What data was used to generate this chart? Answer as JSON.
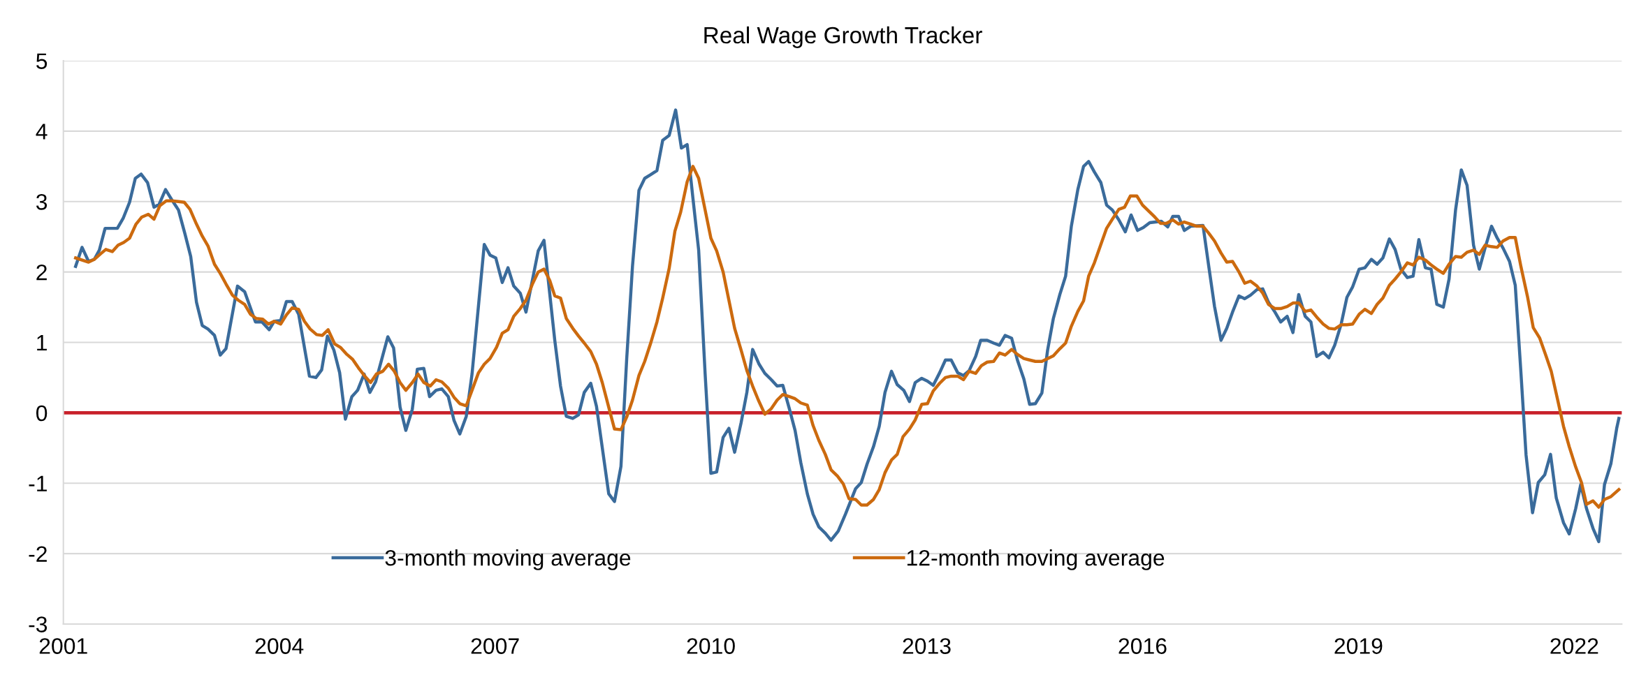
{
  "chart_data": {
    "type": "line",
    "title": "Real Wage Growth Tracker",
    "xlim": [
      2001,
      2022.66
    ],
    "xticks": [
      2001,
      2004,
      2007,
      2010,
      2013,
      2016,
      2019,
      2022
    ],
    "ylim": [
      -3,
      5
    ],
    "yticks": [
      -3,
      -2,
      -1,
      0,
      1,
      2,
      3,
      4,
      5
    ],
    "grid": "y",
    "legend": "bottom",
    "line_style": "solid",
    "marker": "none",
    "ref_lines": [
      {
        "axis": "y",
        "value": 0,
        "label": null,
        "color": "#c8202a",
        "line_style": "solid"
      }
    ],
    "series": [
      {
        "name": "3-month moving average",
        "color": "#3a6b9b",
        "x": [
          2001.17,
          2001.26,
          2001.35,
          2001.43,
          2001.5,
          2001.58,
          2001.75,
          2001.83,
          2001.92,
          2002.0,
          2002.08,
          2002.17,
          2002.26,
          2002.33,
          2002.42,
          2002.51,
          2002.6,
          2002.69,
          2002.77,
          2002.85,
          2002.93,
          2003.01,
          2003.1,
          2003.18,
          2003.26,
          2003.42,
          2003.52,
          2003.67,
          2003.76,
          2003.86,
          2003.93,
          2004.02,
          2004.1,
          2004.18,
          2004.27,
          2004.42,
          2004.51,
          2004.59,
          2004.67,
          2004.76,
          2004.84,
          2004.92,
          2005.01,
          2005.09,
          2005.18,
          2005.26,
          2005.34,
          2005.51,
          2005.59,
          2005.68,
          2005.76,
          2005.85,
          2005.92,
          2006.01,
          2006.09,
          2006.18,
          2006.26,
          2006.35,
          2006.43,
          2006.51,
          2006.6,
          2006.68,
          2006.85,
          2006.93,
          2007.01,
          2007.1,
          2007.18,
          2007.26,
          2007.35,
          2007.43,
          2007.6,
          2007.68,
          2007.83,
          2007.91,
          2007.99,
          2008.08,
          2008.16,
          2008.24,
          2008.33,
          2008.41,
          2008.58,
          2008.66,
          2008.75,
          2008.83,
          2008.91,
          2009.0,
          2009.08,
          2009.16,
          2009.25,
          2009.33,
          2009.42,
          2009.51,
          2009.59,
          2009.67,
          2009.75,
          2009.83,
          2009.92,
          2010.0,
          2010.08,
          2010.17,
          2010.25,
          2010.33,
          2010.42,
          2010.5,
          2010.58,
          2010.67,
          2010.75,
          2010.84,
          2010.92,
          2011.0,
          2011.09,
          2011.17,
          2011.25,
          2011.34,
          2011.42,
          2011.5,
          2011.59,
          2011.67,
          2011.77,
          2011.87,
          2012.01,
          2012.09,
          2012.17,
          2012.26,
          2012.34,
          2012.42,
          2012.51,
          2012.59,
          2012.68,
          2012.76,
          2012.84,
          2012.93,
          2013.01,
          2013.09,
          2013.18,
          2013.26,
          2013.34,
          2013.43,
          2013.51,
          2013.59,
          2013.68,
          2013.75,
          2013.84,
          2013.93,
          2014.01,
          2014.09,
          2014.18,
          2014.26,
          2014.35,
          2014.43,
          2014.51,
          2014.6,
          2014.68,
          2014.76,
          2014.85,
          2014.93,
          2015.01,
          2015.1,
          2015.18,
          2015.25,
          2015.33,
          2015.42,
          2015.5,
          2015.58,
          2015.67,
          2015.76,
          2015.84,
          2015.93,
          2016.01,
          2016.1,
          2016.26,
          2016.35,
          2016.42,
          2016.5,
          2016.58,
          2016.67,
          2016.84,
          2016.92,
          2017.0,
          2017.09,
          2017.17,
          2017.25,
          2017.34,
          2017.42,
          2017.5,
          2017.59,
          2017.67,
          2017.75,
          2017.84,
          2017.92,
          2018.01,
          2018.09,
          2018.17,
          2018.26,
          2018.34,
          2018.42,
          2018.51,
          2018.59,
          2018.67,
          2018.76,
          2018.84,
          2018.92,
          2019.01,
          2019.09,
          2019.18,
          2019.26,
          2019.34,
          2019.43,
          2019.51,
          2019.59,
          2019.68,
          2019.76,
          2019.84,
          2019.93,
          2020.01,
          2020.09,
          2020.18,
          2020.26,
          2020.35,
          2020.43,
          2020.51,
          2020.6,
          2020.68,
          2020.76,
          2020.85,
          2020.93,
          2021.01,
          2021.1,
          2021.18,
          2021.26,
          2021.33,
          2021.42,
          2021.5,
          2021.59,
          2021.67,
          2021.75,
          2021.85,
          2021.93,
          2022.02,
          2022.09,
          2022.17,
          2022.26,
          2022.34,
          2022.42,
          2022.51,
          2022.59,
          2022.62
        ],
        "values": [
          2.08,
          2.35,
          2.15,
          2.18,
          2.31,
          2.62,
          2.62,
          2.76,
          2.99,
          3.33,
          3.39,
          3.27,
          2.92,
          2.96,
          3.17,
          3.02,
          2.88,
          2.54,
          2.22,
          1.57,
          1.24,
          1.19,
          1.1,
          0.82,
          0.91,
          1.8,
          1.72,
          1.29,
          1.29,
          1.18,
          1.3,
          1.31,
          1.58,
          1.58,
          1.4,
          0.52,
          0.5,
          0.61,
          1.09,
          0.89,
          0.57,
          -0.09,
          0.23,
          0.32,
          0.55,
          0.29,
          0.44,
          1.08,
          0.92,
          0.08,
          -0.25,
          0.05,
          0.62,
          0.63,
          0.23,
          0.32,
          0.34,
          0.23,
          -0.11,
          -0.3,
          -0.05,
          0.55,
          2.39,
          2.24,
          2.2,
          1.85,
          2.06,
          1.8,
          1.7,
          1.43,
          2.3,
          2.45,
          1.03,
          0.38,
          -0.05,
          -0.08,
          -0.03,
          0.29,
          0.42,
          0.09,
          -1.15,
          -1.26,
          -0.76,
          0.77,
          2.08,
          3.16,
          3.33,
          3.38,
          3.44,
          3.87,
          3.94,
          4.3,
          3.76,
          3.81,
          3.05,
          2.31,
          0.55,
          -0.86,
          -0.84,
          -0.35,
          -0.22,
          -0.56,
          -0.14,
          0.29,
          0.9,
          0.69,
          0.56,
          0.47,
          0.38,
          0.39,
          0.06,
          -0.25,
          -0.71,
          -1.15,
          -1.44,
          -1.62,
          -1.71,
          -1.81,
          -1.68,
          -1.44,
          -1.08,
          -0.99,
          -0.73,
          -0.48,
          -0.19,
          0.29,
          0.59,
          0.4,
          0.32,
          0.16,
          0.43,
          0.49,
          0.45,
          0.39,
          0.57,
          0.75,
          0.75,
          0.57,
          0.53,
          0.6,
          0.8,
          1.03,
          1.03,
          0.99,
          0.96,
          1.1,
          1.06,
          0.75,
          0.48,
          0.12,
          0.13,
          0.28,
          0.89,
          1.34,
          1.68,
          1.94,
          2.65,
          3.17,
          3.5,
          3.57,
          3.42,
          3.27,
          2.95,
          2.88,
          2.74,
          2.57,
          2.81,
          2.59,
          2.63,
          2.7,
          2.72,
          2.64,
          2.79,
          2.79,
          2.59,
          2.65,
          2.66,
          2.08,
          1.51,
          1.03,
          1.2,
          1.43,
          1.66,
          1.62,
          1.67,
          1.75,
          1.76,
          1.57,
          1.43,
          1.29,
          1.37,
          1.14,
          1.68,
          1.37,
          1.29,
          0.8,
          0.86,
          0.78,
          0.96,
          1.26,
          1.64,
          1.79,
          2.04,
          2.06,
          2.18,
          2.11,
          2.2,
          2.47,
          2.32,
          2.04,
          1.92,
          1.94,
          2.46,
          2.06,
          2.04,
          1.54,
          1.5,
          1.9,
          2.88,
          3.45,
          3.23,
          2.38,
          2.04,
          2.34,
          2.65,
          2.48,
          2.34,
          2.15,
          1.81,
          0.55,
          -0.6,
          -1.42,
          -0.99,
          -0.88,
          -0.59,
          -1.21,
          -1.56,
          -1.72,
          -1.36,
          -1.02,
          -1.36,
          -1.64,
          -1.83,
          -1.02,
          -0.72,
          -0.22,
          -0.08
        ]
      },
      {
        "name": "12-month moving average",
        "color": "#cc6a0e",
        "x": [
          2001.17,
          2001.35,
          2001.43,
          2001.52,
          2001.59,
          2001.68,
          2001.76,
          2001.84,
          2001.92,
          2002.01,
          2002.09,
          2002.18,
          2002.26,
          2002.34,
          2002.43,
          2002.51,
          2002.6,
          2002.68,
          2002.76,
          2002.85,
          2002.93,
          2003.01,
          2003.1,
          2003.18,
          2003.26,
          2003.35,
          2003.43,
          2003.52,
          2003.6,
          2003.68,
          2003.77,
          2003.85,
          2003.93,
          2004.02,
          2004.1,
          2004.18,
          2004.27,
          2004.35,
          2004.43,
          2004.52,
          2004.6,
          2004.68,
          2004.77,
          2004.85,
          2004.94,
          2005.02,
          2005.1,
          2005.19,
          2005.27,
          2005.35,
          2005.44,
          2005.52,
          2005.6,
          2005.68,
          2005.76,
          2005.85,
          2005.93,
          2006.01,
          2006.1,
          2006.18,
          2006.26,
          2006.35,
          2006.43,
          2006.51,
          2006.6,
          2006.68,
          2006.77,
          2006.85,
          2006.93,
          2007.02,
          2007.1,
          2007.18,
          2007.26,
          2007.35,
          2007.43,
          2007.52,
          2007.6,
          2007.68,
          2007.76,
          2007.83,
          2007.91,
          2007.99,
          2008.08,
          2008.16,
          2008.24,
          2008.33,
          2008.41,
          2008.49,
          2008.58,
          2008.66,
          2008.75,
          2008.83,
          2008.91,
          2009.0,
          2009.08,
          2009.16,
          2009.25,
          2009.33,
          2009.42,
          2009.5,
          2009.58,
          2009.67,
          2009.75,
          2009.83,
          2009.92,
          2010.0,
          2010.08,
          2010.17,
          2010.25,
          2010.33,
          2010.42,
          2010.5,
          2010.58,
          2010.66,
          2010.75,
          2010.84,
          2010.92,
          2011.0,
          2011.09,
          2011.17,
          2011.25,
          2011.34,
          2011.42,
          2011.5,
          2011.59,
          2011.67,
          2011.76,
          2011.84,
          2011.92,
          2012.01,
          2012.09,
          2012.17,
          2012.26,
          2012.34,
          2012.42,
          2012.51,
          2012.59,
          2012.67,
          2012.76,
          2012.84,
          2012.93,
          2013.01,
          2013.09,
          2013.18,
          2013.26,
          2013.34,
          2013.43,
          2013.51,
          2013.59,
          2013.68,
          2013.76,
          2013.84,
          2013.93,
          2014.01,
          2014.09,
          2014.18,
          2014.26,
          2014.35,
          2014.43,
          2014.51,
          2014.6,
          2014.68,
          2014.76,
          2014.85,
          2014.93,
          2015.01,
          2015.1,
          2015.18,
          2015.25,
          2015.33,
          2015.42,
          2015.5,
          2015.58,
          2015.67,
          2015.75,
          2015.83,
          2015.92,
          2016.0,
          2016.08,
          2016.17,
          2016.25,
          2016.33,
          2016.42,
          2016.5,
          2016.58,
          2016.67,
          2016.75,
          2016.84,
          2016.92,
          2017.0,
          2017.09,
          2017.17,
          2017.25,
          2017.34,
          2017.42,
          2017.5,
          2017.59,
          2017.67,
          2017.75,
          2017.84,
          2017.92,
          2018.01,
          2018.09,
          2018.17,
          2018.26,
          2018.34,
          2018.42,
          2018.51,
          2018.59,
          2018.67,
          2018.76,
          2018.84,
          2018.92,
          2019.01,
          2019.09,
          2019.18,
          2019.26,
          2019.34,
          2019.43,
          2019.51,
          2019.59,
          2019.68,
          2019.76,
          2019.84,
          2019.93,
          2020.01,
          2020.09,
          2020.18,
          2020.26,
          2020.35,
          2020.43,
          2020.51,
          2020.6,
          2020.68,
          2020.76,
          2020.85,
          2020.93,
          2021.01,
          2021.1,
          2021.18,
          2021.26,
          2021.35,
          2021.43,
          2021.52,
          2021.6,
          2021.68,
          2021.77,
          2021.85,
          2021.93,
          2022.02,
          2022.1,
          2022.17,
          2022.26,
          2022.34,
          2022.42,
          2022.51,
          2022.62
        ],
        "values": [
          2.2,
          2.14,
          2.18,
          2.26,
          2.32,
          2.29,
          2.38,
          2.42,
          2.48,
          2.68,
          2.78,
          2.82,
          2.75,
          2.94,
          3.01,
          3.01,
          3.0,
          2.99,
          2.89,
          2.68,
          2.51,
          2.37,
          2.11,
          1.98,
          1.83,
          1.67,
          1.6,
          1.54,
          1.4,
          1.34,
          1.33,
          1.26,
          1.3,
          1.26,
          1.39,
          1.49,
          1.47,
          1.3,
          1.19,
          1.11,
          1.1,
          1.18,
          0.98,
          0.93,
          0.83,
          0.76,
          0.64,
          0.52,
          0.43,
          0.55,
          0.59,
          0.69,
          0.59,
          0.43,
          0.32,
          0.43,
          0.55,
          0.43,
          0.38,
          0.47,
          0.44,
          0.35,
          0.22,
          0.13,
          0.1,
          0.32,
          0.57,
          0.69,
          0.77,
          0.93,
          1.13,
          1.18,
          1.37,
          1.48,
          1.6,
          1.83,
          2.0,
          2.04,
          1.88,
          1.66,
          1.63,
          1.34,
          1.2,
          1.09,
          0.99,
          0.87,
          0.69,
          0.43,
          0.08,
          -0.23,
          -0.24,
          -0.06,
          0.18,
          0.53,
          0.73,
          0.98,
          1.29,
          1.63,
          2.05,
          2.58,
          2.85,
          3.28,
          3.5,
          3.33,
          2.88,
          2.48,
          2.3,
          2.0,
          1.6,
          1.2,
          0.89,
          0.6,
          0.38,
          0.18,
          -0.02,
          0.06,
          0.18,
          0.26,
          0.23,
          0.2,
          0.14,
          0.11,
          -0.18,
          -0.39,
          -0.59,
          -0.81,
          -0.9,
          -1.01,
          -1.22,
          -1.23,
          -1.31,
          -1.31,
          -1.23,
          -1.09,
          -0.85,
          -0.67,
          -0.59,
          -0.34,
          -0.23,
          -0.1,
          0.12,
          0.13,
          0.31,
          0.42,
          0.5,
          0.52,
          0.52,
          0.47,
          0.59,
          0.56,
          0.67,
          0.72,
          0.73,
          0.85,
          0.82,
          0.9,
          0.83,
          0.77,
          0.75,
          0.73,
          0.73,
          0.77,
          0.81,
          0.91,
          0.99,
          1.23,
          1.44,
          1.59,
          1.94,
          2.13,
          2.39,
          2.62,
          2.75,
          2.89,
          2.92,
          3.08,
          3.08,
          2.95,
          2.87,
          2.78,
          2.69,
          2.69,
          2.74,
          2.68,
          2.71,
          2.68,
          2.65,
          2.65,
          2.55,
          2.44,
          2.27,
          2.14,
          2.15,
          2.0,
          1.84,
          1.87,
          1.8,
          1.7,
          1.54,
          1.48,
          1.48,
          1.51,
          1.56,
          1.56,
          1.44,
          1.46,
          1.36,
          1.26,
          1.2,
          1.19,
          1.25,
          1.25,
          1.26,
          1.4,
          1.47,
          1.41,
          1.54,
          1.63,
          1.81,
          1.9,
          2.0,
          2.13,
          2.1,
          2.21,
          2.17,
          2.1,
          2.04,
          1.98,
          2.11,
          2.22,
          2.21,
          2.28,
          2.31,
          2.25,
          2.38,
          2.36,
          2.35,
          2.44,
          2.49,
          2.49,
          2.07,
          1.65,
          1.21,
          1.06,
          0.83,
          0.59,
          0.18,
          -0.19,
          -0.48,
          -0.77,
          -0.99,
          -1.3,
          -1.25,
          -1.34,
          -1.23,
          -1.19,
          -1.09
        ]
      }
    ]
  }
}
